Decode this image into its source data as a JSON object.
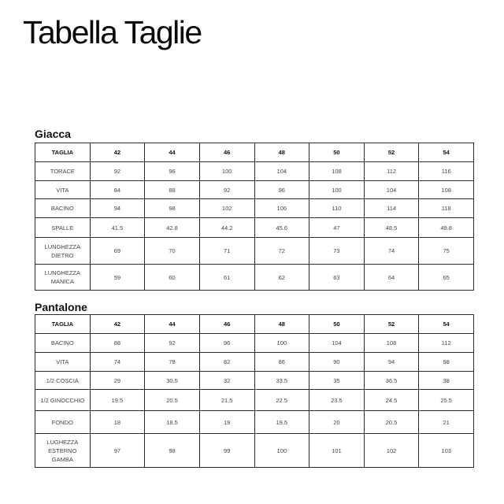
{
  "title": "Tabella Taglie",
  "tables": [
    {
      "name": "Giacca",
      "header": [
        "TAGLIA",
        "42",
        "44",
        "46",
        "48",
        "50",
        "52",
        "54"
      ],
      "rows": [
        [
          "TORACE",
          "92",
          "96",
          "100",
          "104",
          "108",
          "112",
          "116"
        ],
        [
          "VITA",
          "84",
          "88",
          "92",
          "96",
          "100",
          "104",
          "108"
        ],
        [
          "BACINO",
          "94",
          "98",
          "102",
          "106",
          "110",
          "114",
          "118"
        ],
        [
          "SPALLE",
          "41.5",
          "42.8",
          "44.2",
          "45.6",
          "47",
          "48.5",
          "49.8"
        ],
        [
          "LUNGHEZZA\nDIETRO",
          "69",
          "70",
          "71",
          "72",
          "73",
          "74",
          "75"
        ],
        [
          "LUNGHEZZA\nMANICA",
          "59",
          "60",
          "61",
          "62",
          "63",
          "64",
          "65"
        ]
      ]
    },
    {
      "name": "Pantalone",
      "header": [
        "TAGLIA",
        "42",
        "44",
        "46",
        "48",
        "50",
        "52",
        "54"
      ],
      "rows": [
        [
          "BACINO",
          "88",
          "92",
          "96",
          "100",
          "104",
          "108",
          "112"
        ],
        [
          "VITA",
          "74",
          "78",
          "82",
          "86",
          "90",
          "94",
          "98"
        ],
        [
          "1/2 COSCIA",
          "29",
          "30.5",
          "32",
          "33.5",
          "35",
          "36.5",
          "38"
        ],
        [
          "1/2 GINOCCHIO",
          "19.5",
          "20.5",
          "21.5",
          "22.5",
          "23.5",
          "24.5",
          "25.5"
        ],
        [
          "FONDO",
          "18",
          "18.5",
          "19",
          "19.5",
          "20",
          "20.5",
          "21"
        ],
        [
          "LUGHEZZA\nESTERNO\nGAMBA",
          "97",
          "98",
          "99",
          "100",
          "101",
          "102",
          "103"
        ]
      ]
    }
  ]
}
